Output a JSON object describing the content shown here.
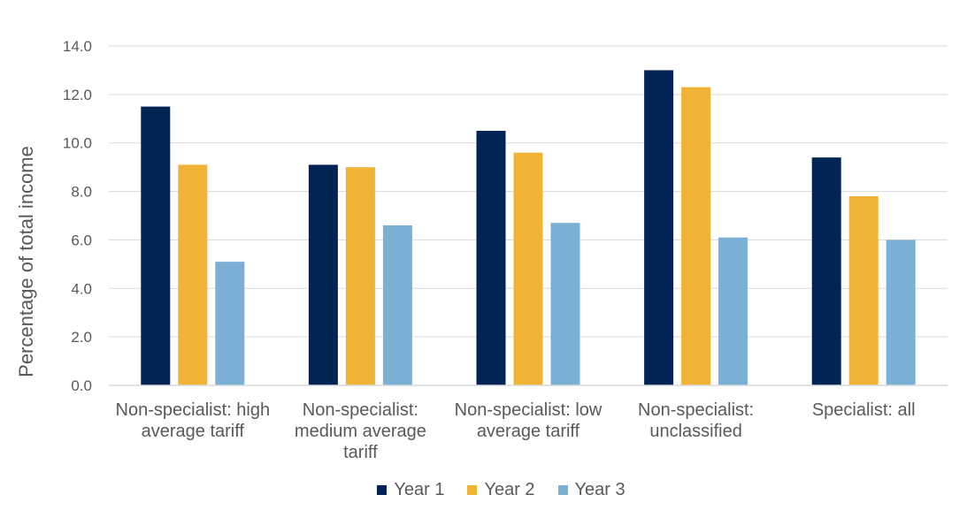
{
  "chart_data": {
    "type": "bar",
    "ylabel": "Percentage of total income",
    "ylim": [
      0,
      14
    ],
    "yticks": [
      "0.0",
      "2.0",
      "4.0",
      "6.0",
      "8.0",
      "10.0",
      "12.0",
      "14.0"
    ],
    "grid": true,
    "legend_position": "bottom",
    "categories": [
      "Non-specialist: high average tariff",
      "Non-specialist: medium average tariff",
      "Non-specialist: low average tariff",
      "Non-specialist: unclassified",
      "Specialist: all"
    ],
    "series": [
      {
        "name": "Year 1",
        "color": "#002554",
        "values": [
          11.5,
          9.1,
          10.5,
          13.0,
          9.4
        ]
      },
      {
        "name": "Year 2",
        "color": "#F0B335",
        "values": [
          9.1,
          9.0,
          9.6,
          12.3,
          7.8
        ]
      },
      {
        "name": "Year 3",
        "color": "#7BAFD4",
        "values": [
          5.1,
          6.6,
          6.7,
          6.1,
          6.0
        ]
      }
    ]
  }
}
